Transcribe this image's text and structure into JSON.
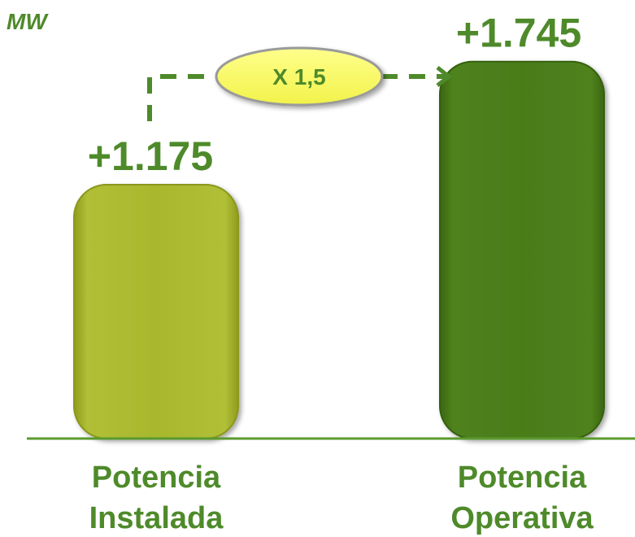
{
  "chart_data": {
    "type": "bar",
    "unit_label": "MW",
    "categories": [
      "Potencia Instalada",
      "Potencia Operativa"
    ],
    "category_lines": [
      [
        "Potencia",
        "Instalada"
      ],
      [
        "Potencia",
        "Operativa"
      ]
    ],
    "values": [
      1175,
      1745
    ],
    "value_labels": [
      "+1.175",
      "+1.745"
    ],
    "bar_colors": [
      "#a5b52b",
      "#4a7c19"
    ],
    "text_color": "#4e8a2a",
    "annotation": {
      "label": "X 1,5",
      "fill": "#ffff66"
    },
    "ylim": [
      0,
      2000
    ],
    "grid": false
  }
}
